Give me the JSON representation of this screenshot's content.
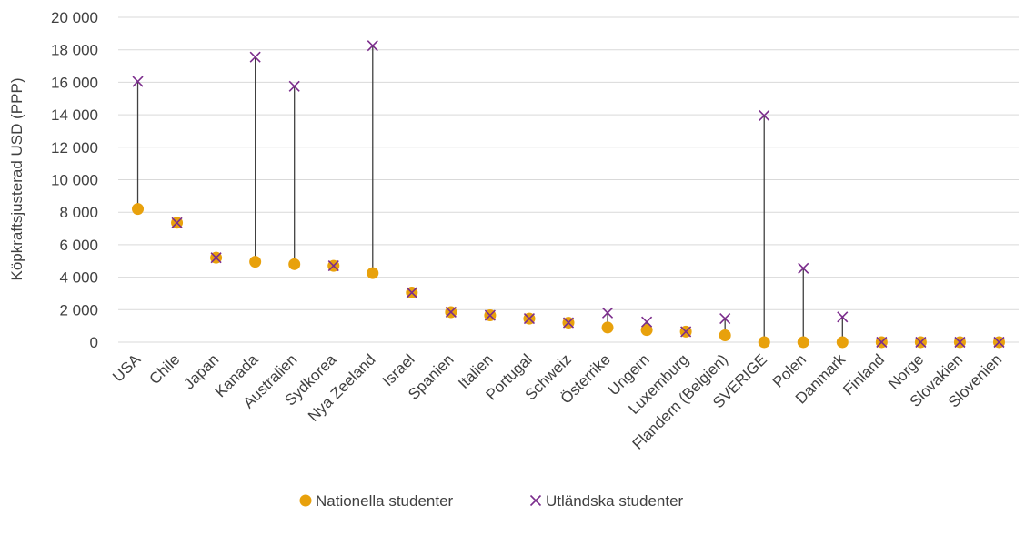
{
  "chart_data": {
    "type": "scatter",
    "title": "",
    "ylabel": "Köpkraftsjusterad USD (PPP)",
    "xlabel": "",
    "ylim": [
      0,
      20000
    ],
    "y_ticks": [
      0,
      2000,
      4000,
      6000,
      8000,
      10000,
      12000,
      14000,
      16000,
      18000,
      20000
    ],
    "y_tick_labels": [
      "0",
      "2 000",
      "4 000",
      "6 000",
      "8 000",
      "10 000",
      "12 000",
      "14 000",
      "16 000",
      "18 000",
      "20 000"
    ],
    "grid": true,
    "legend_position": "bottom",
    "categories": [
      "USA",
      "Chile",
      "Japan",
      "Kanada",
      "Australien",
      "Sydkorea",
      "Nya Zeeland",
      "Israel",
      "Spanien",
      "Italien",
      "Portugal",
      "Schweiz",
      "Österrike",
      "Ungern",
      "Luxemburg",
      "Flandern (Belgien)",
      "SVERIGE",
      "Polen",
      "Danmark",
      "Finland",
      "Norge",
      "Slovakien",
      "Slovenien"
    ],
    "series": [
      {
        "name": "Nationella studenter",
        "marker": "circle",
        "color": "#E8A10C",
        "values": [
          8200,
          7350,
          5200,
          4950,
          4800,
          4700,
          4250,
          3050,
          1850,
          1650,
          1450,
          1200,
          900,
          750,
          650,
          420,
          0,
          0,
          0,
          0,
          0,
          0,
          0
        ]
      },
      {
        "name": "Utländska studenter",
        "marker": "x",
        "color": "#7B2C8C",
        "values": [
          16050,
          7350,
          5200,
          17550,
          15750,
          4700,
          18250,
          3050,
          1850,
          1650,
          1450,
          1200,
          1800,
          1250,
          650,
          1450,
          13950,
          4550,
          1550,
          0,
          0,
          0,
          0
        ]
      }
    ]
  }
}
